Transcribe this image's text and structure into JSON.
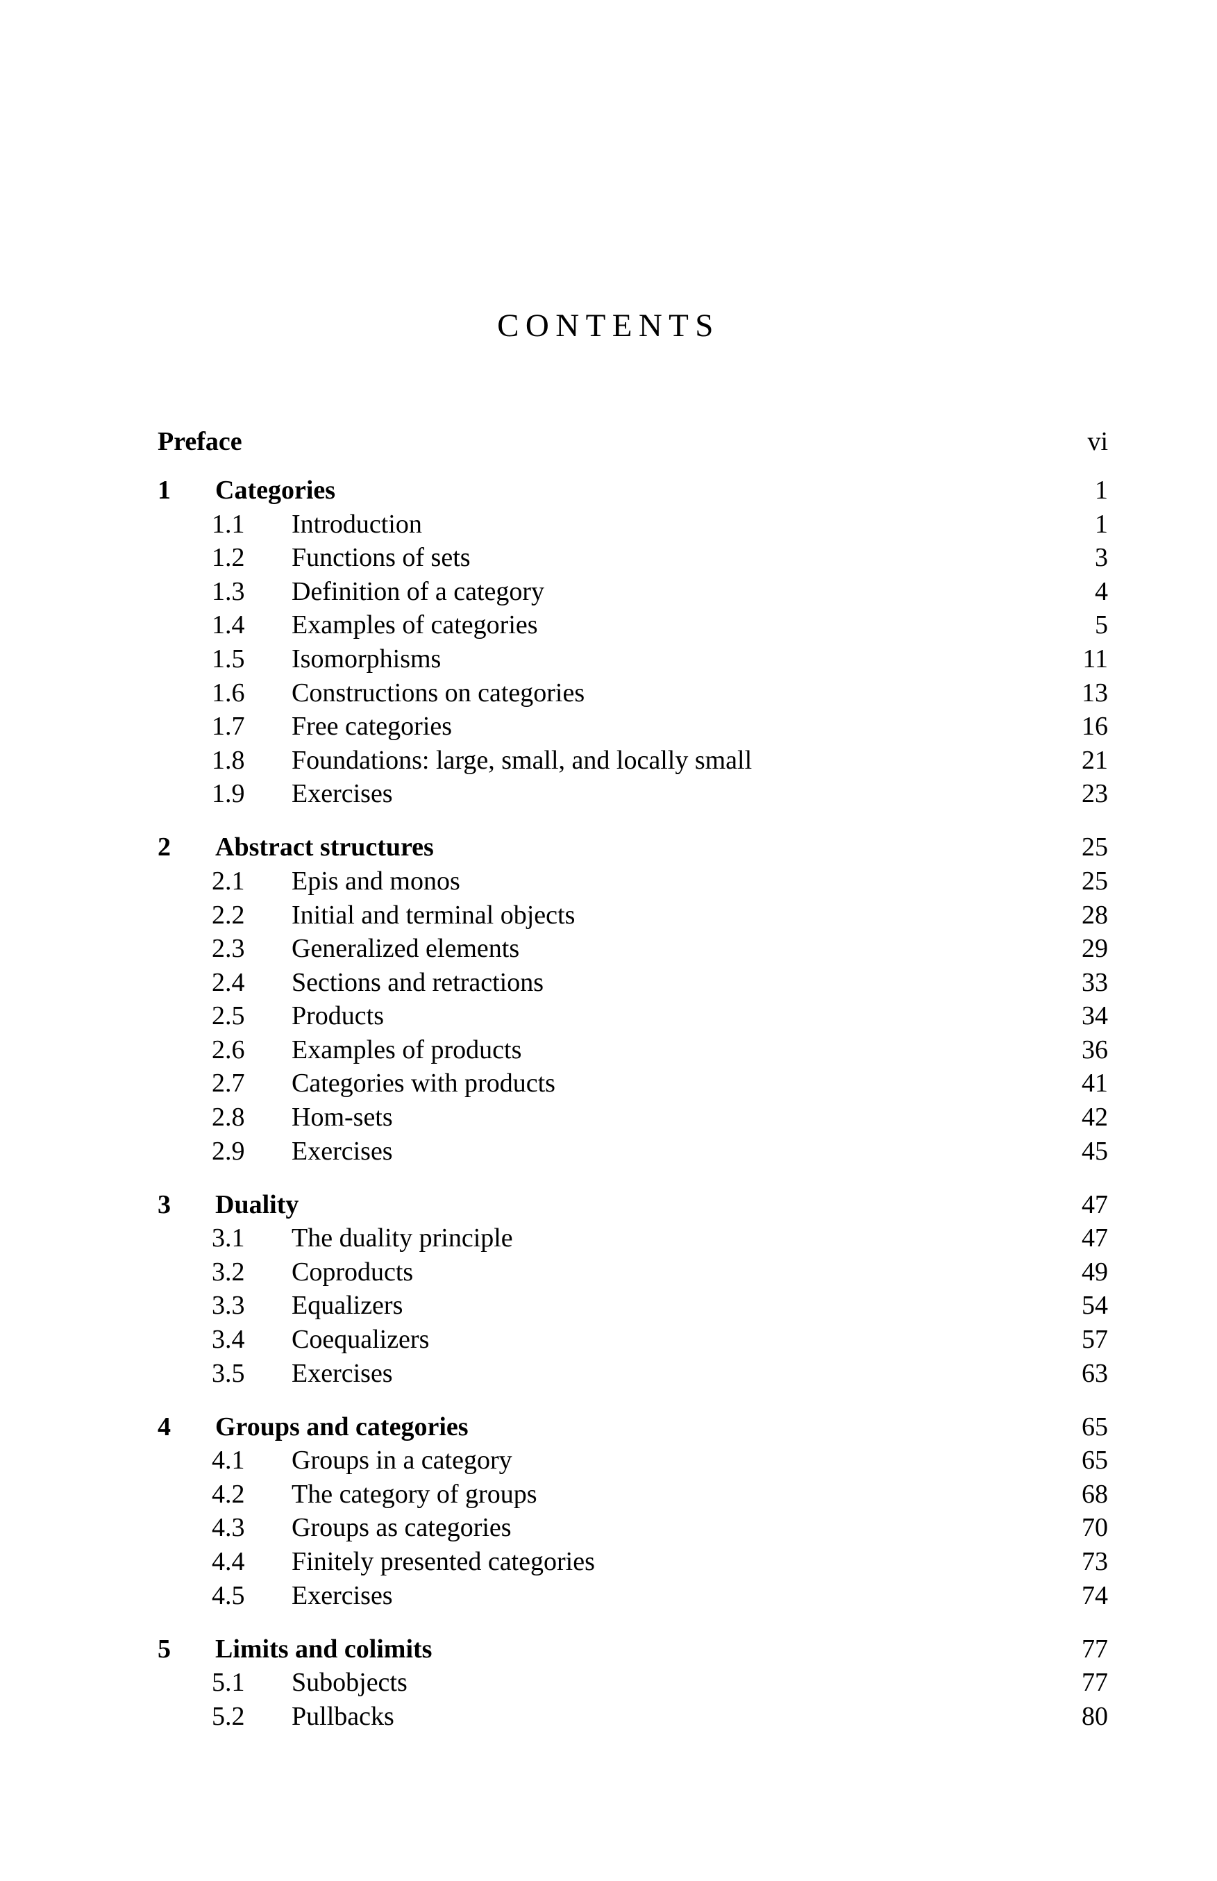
{
  "colors": {
    "background": "#ffffff",
    "text": "#000000"
  },
  "document": {
    "title": "CONTENTS",
    "front_matter": [
      {
        "label": "Preface",
        "page": "vi"
      }
    ],
    "chapters": [
      {
        "number": "1",
        "title": "Categories",
        "page": "1",
        "sections": [
          {
            "number": "1.1",
            "title": "Introduction",
            "page": "1"
          },
          {
            "number": "1.2",
            "title": "Functions of sets",
            "page": "3"
          },
          {
            "number": "1.3",
            "title": "Definition of a category",
            "page": "4"
          },
          {
            "number": "1.4",
            "title": "Examples of categories",
            "page": "5"
          },
          {
            "number": "1.5",
            "title": "Isomorphisms",
            "page": "11"
          },
          {
            "number": "1.6",
            "title": "Constructions on categories",
            "page": "13"
          },
          {
            "number": "1.7",
            "title": "Free categories",
            "page": "16"
          },
          {
            "number": "1.8",
            "title": "Foundations: large, small, and locally small",
            "page": "21"
          },
          {
            "number": "1.9",
            "title": "Exercises",
            "page": "23"
          }
        ]
      },
      {
        "number": "2",
        "title": "Abstract structures",
        "page": "25",
        "sections": [
          {
            "number": "2.1",
            "title": "Epis and monos",
            "page": "25"
          },
          {
            "number": "2.2",
            "title": "Initial and terminal objects",
            "page": "28"
          },
          {
            "number": "2.3",
            "title": "Generalized elements",
            "page": "29"
          },
          {
            "number": "2.4",
            "title": "Sections and retractions",
            "page": "33"
          },
          {
            "number": "2.5",
            "title": "Products",
            "page": "34"
          },
          {
            "number": "2.6",
            "title": "Examples of products",
            "page": "36"
          },
          {
            "number": "2.7",
            "title": "Categories with products",
            "page": "41"
          },
          {
            "number": "2.8",
            "title": "Hom-sets",
            "page": "42"
          },
          {
            "number": "2.9",
            "title": "Exercises",
            "page": "45"
          }
        ]
      },
      {
        "number": "3",
        "title": "Duality",
        "page": "47",
        "sections": [
          {
            "number": "3.1",
            "title": "The duality principle",
            "page": "47"
          },
          {
            "number": "3.2",
            "title": "Coproducts",
            "page": "49"
          },
          {
            "number": "3.3",
            "title": "Equalizers",
            "page": "54"
          },
          {
            "number": "3.4",
            "title": "Coequalizers",
            "page": "57"
          },
          {
            "number": "3.5",
            "title": "Exercises",
            "page": "63"
          }
        ]
      },
      {
        "number": "4",
        "title": "Groups and categories",
        "page": "65",
        "sections": [
          {
            "number": "4.1",
            "title": "Groups in a category",
            "page": "65"
          },
          {
            "number": "4.2",
            "title": "The category of groups",
            "page": "68"
          },
          {
            "number": "4.3",
            "title": "Groups as categories",
            "page": "70"
          },
          {
            "number": "4.4",
            "title": "Finitely presented categories",
            "page": "73"
          },
          {
            "number": "4.5",
            "title": "Exercises",
            "page": "74"
          }
        ]
      },
      {
        "number": "5",
        "title": "Limits and colimits",
        "page": "77",
        "sections": [
          {
            "number": "5.1",
            "title": "Subobjects",
            "page": "77"
          },
          {
            "number": "5.2",
            "title": "Pullbacks",
            "page": "80"
          }
        ]
      }
    ]
  }
}
